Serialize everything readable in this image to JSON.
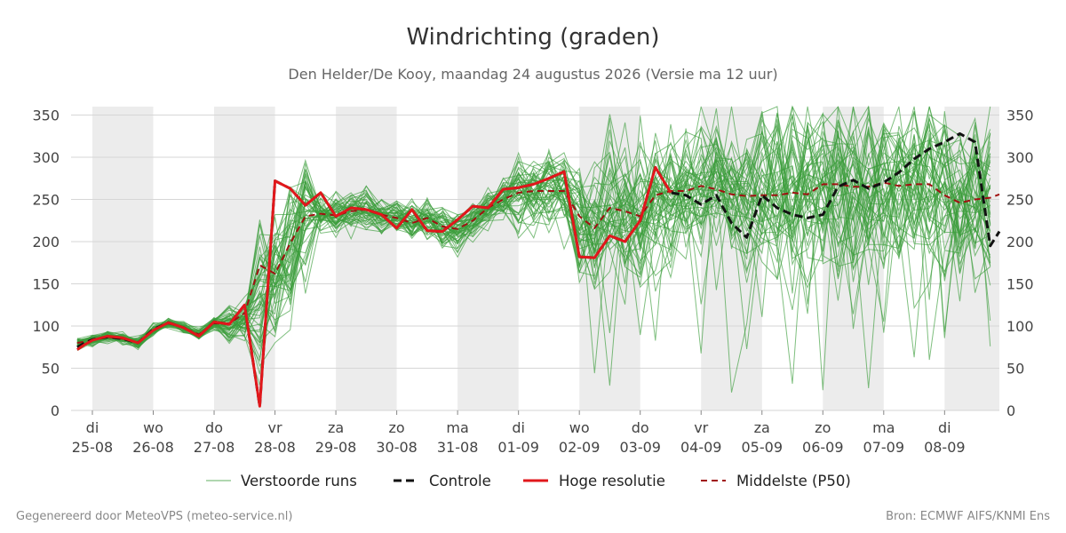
{
  "chart_data": {
    "type": "line",
    "title": "Windrichting (graden)",
    "subtitle": "Den Helder/De Kooy, maandag 24 augustus 2026 (Versie ma 12 uur)",
    "ylim": [
      0,
      360
    ],
    "yticks": [
      0,
      50,
      100,
      150,
      200,
      250,
      300,
      350
    ],
    "x_unit": "days from 2026-08-24 00:00",
    "xlim": [
      0.65,
      15.9
    ],
    "xticks": [
      {
        "x": 1,
        "day": "di",
        "date": "25-08"
      },
      {
        "x": 2,
        "day": "wo",
        "date": "26-08"
      },
      {
        "x": 3,
        "day": "do",
        "date": "27-08"
      },
      {
        "x": 4,
        "day": "vr",
        "date": "28-08"
      },
      {
        "x": 5,
        "day": "za",
        "date": "29-08"
      },
      {
        "x": 6,
        "day": "zo",
        "date": "30-08"
      },
      {
        "x": 7,
        "day": "ma",
        "date": "31-08"
      },
      {
        "x": 8,
        "day": "di",
        "date": "01-09"
      },
      {
        "x": 9,
        "day": "wo",
        "date": "02-09"
      },
      {
        "x": 10,
        "day": "do",
        "date": "03-09"
      },
      {
        "x": 11,
        "day": "vr",
        "date": "04-09"
      },
      {
        "x": 12,
        "day": "za",
        "date": "05-09"
      },
      {
        "x": 13,
        "day": "zo",
        "date": "06-09"
      },
      {
        "x": 14,
        "day": "ma",
        "date": "07-09"
      },
      {
        "x": 15,
        "day": "di",
        "date": "08-09"
      }
    ],
    "shaded_days": [
      1,
      3,
      5,
      7,
      9,
      11,
      13,
      15
    ],
    "grid": "horizontal",
    "legend_position": "bottom",
    "series": [
      {
        "name": "Controle",
        "color": "#111111",
        "style": "dashed",
        "points": [
          [
            0.75,
            75
          ],
          [
            0.875,
            80
          ],
          [
            1,
            84
          ],
          [
            1.25,
            87
          ],
          [
            1.5,
            85
          ],
          [
            1.75,
            80
          ],
          [
            2,
            96
          ],
          [
            2.25,
            104
          ],
          [
            2.5,
            98
          ],
          [
            2.75,
            88
          ],
          [
            3,
            105
          ],
          [
            3.25,
            102
          ],
          [
            3.5,
            125
          ],
          [
            3.75,
            5
          ],
          [
            4,
            272
          ],
          [
            4.25,
            263
          ],
          [
            4.5,
            243
          ],
          [
            4.75,
            258
          ],
          [
            5,
            230
          ],
          [
            5.25,
            240
          ],
          [
            5.5,
            238
          ],
          [
            5.75,
            232
          ],
          [
            6,
            216
          ],
          [
            6.25,
            238
          ],
          [
            6.5,
            213
          ],
          [
            6.75,
            212
          ],
          [
            7,
            226
          ],
          [
            7.25,
            242
          ],
          [
            7.5,
            240
          ],
          [
            7.75,
            262
          ],
          [
            8,
            264
          ],
          [
            8.25,
            268
          ],
          [
            8.5,
            275
          ],
          [
            8.75,
            283
          ],
          [
            9,
            182
          ],
          [
            9.25,
            181
          ],
          [
            9.5,
            207
          ],
          [
            9.75,
            200
          ],
          [
            10,
            225
          ],
          [
            10.25,
            288
          ],
          [
            10.5,
            258
          ],
          [
            10.75,
            255
          ],
          [
            11,
            244
          ],
          [
            11.25,
            255
          ],
          [
            11.5,
            222
          ],
          [
            11.75,
            205
          ],
          [
            12,
            255
          ],
          [
            12.25,
            240
          ],
          [
            12.5,
            232
          ],
          [
            12.75,
            228
          ],
          [
            13,
            232
          ],
          [
            13.25,
            265
          ],
          [
            13.5,
            273
          ],
          [
            13.75,
            263
          ],
          [
            14,
            270
          ],
          [
            14.25,
            282
          ],
          [
            14.5,
            298
          ],
          [
            14.75,
            310
          ],
          [
            15,
            318
          ],
          [
            15.25,
            328
          ],
          [
            15.5,
            318
          ],
          [
            15.75,
            195
          ],
          [
            15.9,
            212
          ]
        ]
      },
      {
        "name": "Hoge resolutie",
        "color": "#e1171b",
        "style": "solid",
        "points": [
          [
            0.75,
            72
          ],
          [
            0.875,
            78
          ],
          [
            1,
            83
          ],
          [
            1.25,
            88
          ],
          [
            1.5,
            86
          ],
          [
            1.75,
            80
          ],
          [
            2,
            95
          ],
          [
            2.25,
            104
          ],
          [
            2.5,
            98
          ],
          [
            2.75,
            88
          ],
          [
            3,
            105
          ],
          [
            3.25,
            102
          ],
          [
            3.5,
            125
          ],
          [
            3.75,
            5
          ],
          [
            4,
            272
          ],
          [
            4.25,
            263
          ],
          [
            4.5,
            243
          ],
          [
            4.75,
            258
          ],
          [
            5,
            230
          ],
          [
            5.25,
            240
          ],
          [
            5.5,
            238
          ],
          [
            5.75,
            232
          ],
          [
            6,
            216
          ],
          [
            6.25,
            238
          ],
          [
            6.5,
            213
          ],
          [
            6.75,
            212
          ],
          [
            7,
            226
          ],
          [
            7.25,
            242
          ],
          [
            7.5,
            240
          ],
          [
            7.75,
            262
          ],
          [
            8,
            264
          ],
          [
            8.25,
            268
          ],
          [
            8.5,
            275
          ],
          [
            8.75,
            283
          ],
          [
            9,
            182
          ],
          [
            9.25,
            181
          ],
          [
            9.5,
            207
          ],
          [
            9.75,
            200
          ],
          [
            10,
            225
          ],
          [
            10.25,
            288
          ],
          [
            10.5,
            258
          ]
        ]
      },
      {
        "name": "Middelste (P50)",
        "color": "#a01010",
        "style": "dashed",
        "points": [
          [
            0.75,
            80
          ],
          [
            1,
            83
          ],
          [
            1.25,
            87
          ],
          [
            1.5,
            85
          ],
          [
            1.75,
            80
          ],
          [
            2,
            96
          ],
          [
            2.25,
            103
          ],
          [
            2.5,
            98
          ],
          [
            2.75,
            90
          ],
          [
            3,
            103
          ],
          [
            3.25,
            103
          ],
          [
            3.5,
            115
          ],
          [
            3.75,
            172
          ],
          [
            4,
            162
          ],
          [
            4.25,
            198
          ],
          [
            4.5,
            230
          ],
          [
            4.75,
            233
          ],
          [
            5,
            231
          ],
          [
            5.25,
            236
          ],
          [
            5.5,
            238
          ],
          [
            5.75,
            232
          ],
          [
            6,
            228
          ],
          [
            6.25,
            222
          ],
          [
            6.5,
            228
          ],
          [
            6.75,
            218
          ],
          [
            7,
            215
          ],
          [
            7.25,
            225
          ],
          [
            7.5,
            240
          ],
          [
            7.75,
            250
          ],
          [
            8,
            258
          ],
          [
            8.25,
            260
          ],
          [
            8.5,
            260
          ],
          [
            8.75,
            260
          ],
          [
            9,
            230
          ],
          [
            9.25,
            216
          ],
          [
            9.5,
            240
          ],
          [
            9.75,
            236
          ],
          [
            10,
            230
          ],
          [
            10.25,
            255
          ],
          [
            10.5,
            260
          ],
          [
            10.75,
            260
          ],
          [
            11,
            266
          ],
          [
            11.25,
            262
          ],
          [
            11.5,
            256
          ],
          [
            11.75,
            254
          ],
          [
            12,
            255
          ],
          [
            12.25,
            255
          ],
          [
            12.5,
            258
          ],
          [
            12.75,
            256
          ],
          [
            13,
            268
          ],
          [
            13.25,
            268
          ],
          [
            13.5,
            265
          ],
          [
            13.75,
            265
          ],
          [
            14,
            270
          ],
          [
            14.25,
            266
          ],
          [
            14.5,
            268
          ],
          [
            14.75,
            268
          ],
          [
            15,
            255
          ],
          [
            15.25,
            246
          ],
          [
            15.5,
            250
          ],
          [
            15.75,
            252
          ],
          [
            15.9,
            256
          ]
        ]
      }
    ],
    "ensemble": {
      "name": "Verstoorde runs",
      "color": "#3a9c3a",
      "members": 50,
      "start_x": 0.75,
      "end_x": 15.9,
      "step_early": 0.25,
      "step_late": 0.25,
      "spread_note": "members cluster near the control until 28-08, widen strongly after 02-09"
    }
  },
  "legend": {
    "items": [
      {
        "label": "Verstoorde runs"
      },
      {
        "label": "Controle"
      },
      {
        "label": "Hoge resolutie"
      },
      {
        "label": "Middelste (P50)"
      }
    ]
  },
  "footer": {
    "left": "Gegenereerd door MeteoVPS (meteo-service.nl)",
    "right": "Bron: ECMWF AIFS/KNMI Ens"
  }
}
